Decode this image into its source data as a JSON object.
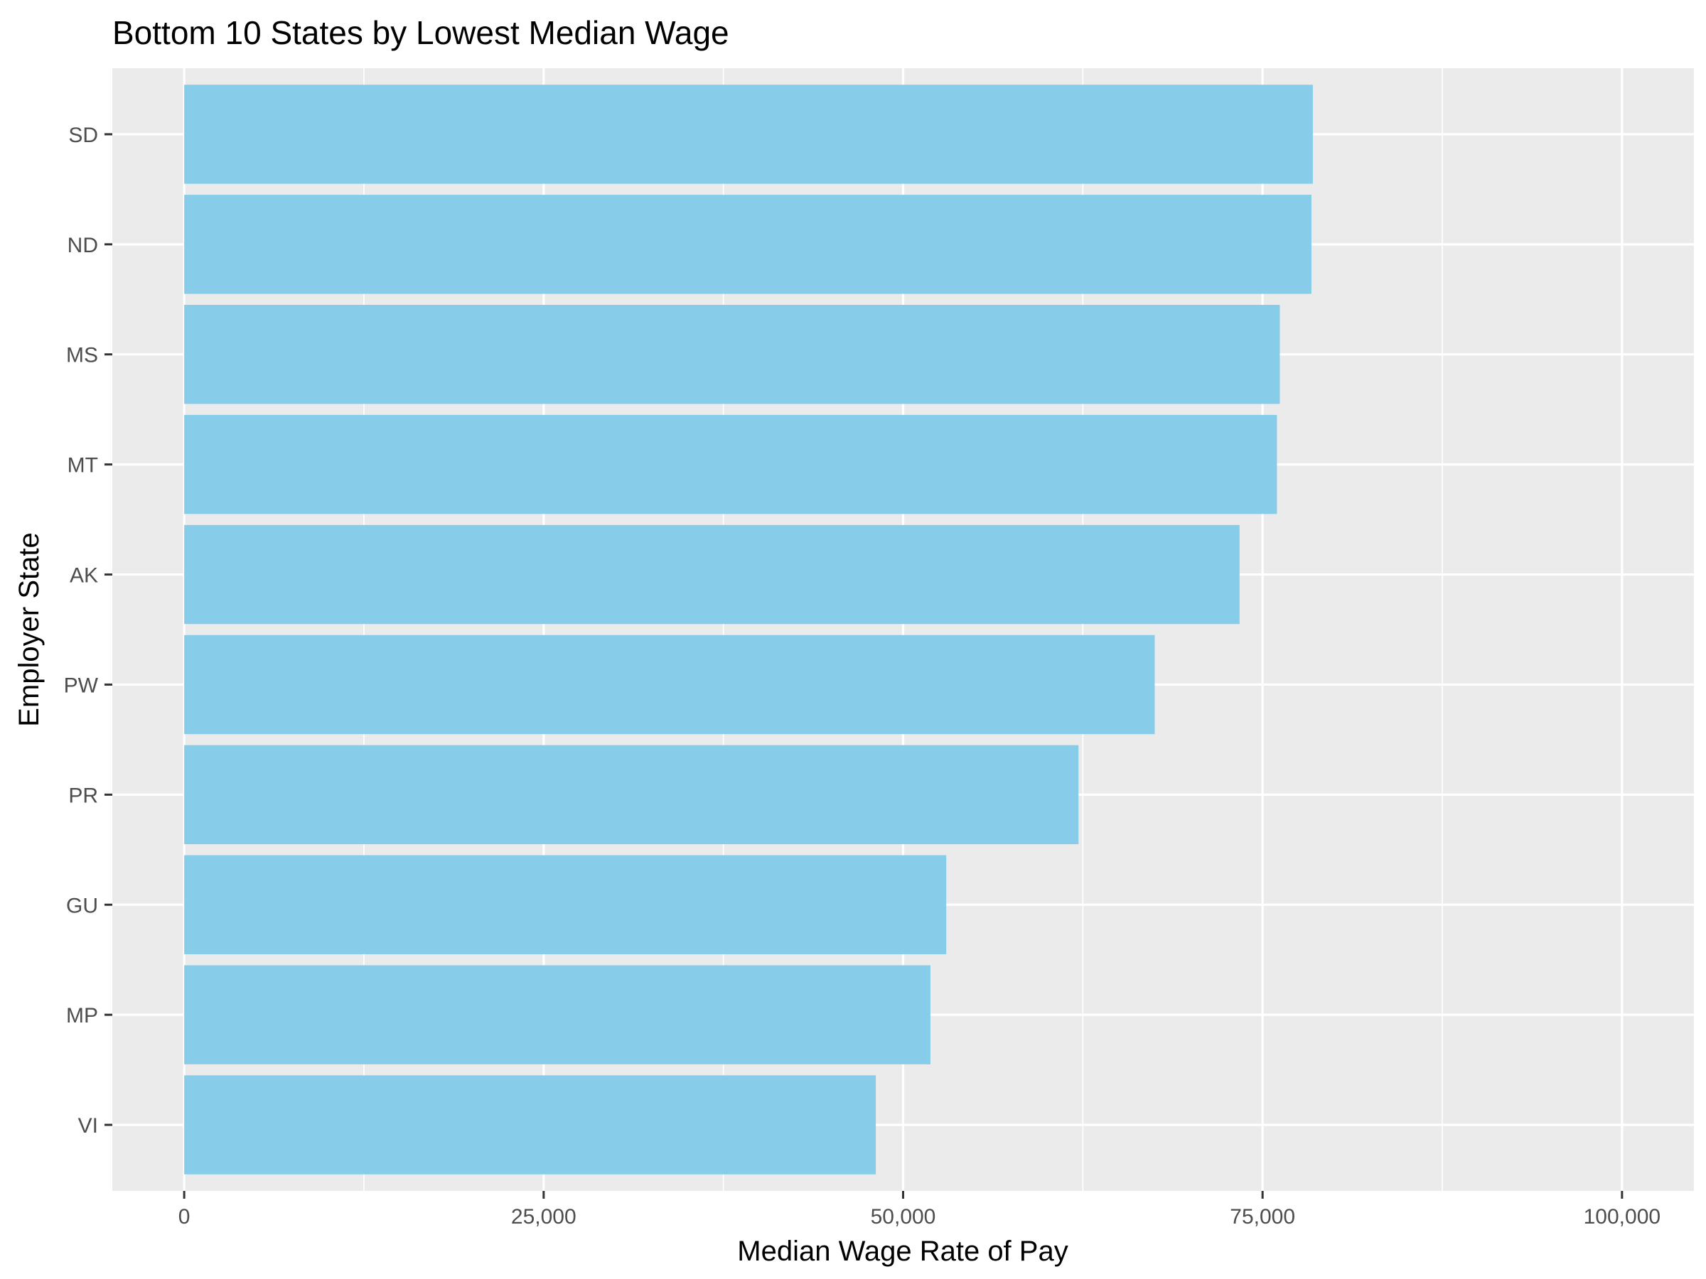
{
  "chart_data": {
    "type": "bar",
    "orientation": "horizontal",
    "title": "Bottom 10 States by Lowest Median Wage",
    "xlabel": "Median Wage Rate of Pay",
    "ylabel": "Employer State",
    "categories": [
      "SD",
      "ND",
      "MS",
      "MT",
      "AK",
      "PW",
      "PR",
      "GU",
      "MP",
      "VI"
    ],
    "values": [
      78500,
      78400,
      76200,
      76000,
      73400,
      67500,
      62200,
      53000,
      51900,
      48100
    ],
    "xlim": [
      -5000,
      105000
    ],
    "xticks": [
      0,
      25000,
      50000,
      75000,
      100000
    ],
    "xtick_labels": [
      "0",
      "25,000",
      "50,000",
      "75,000",
      "100,000"
    ],
    "grid": true,
    "colors": {
      "bar": "#87CDE9",
      "panel": "#EBEBEB",
      "grid": "#FFFFFF"
    }
  }
}
